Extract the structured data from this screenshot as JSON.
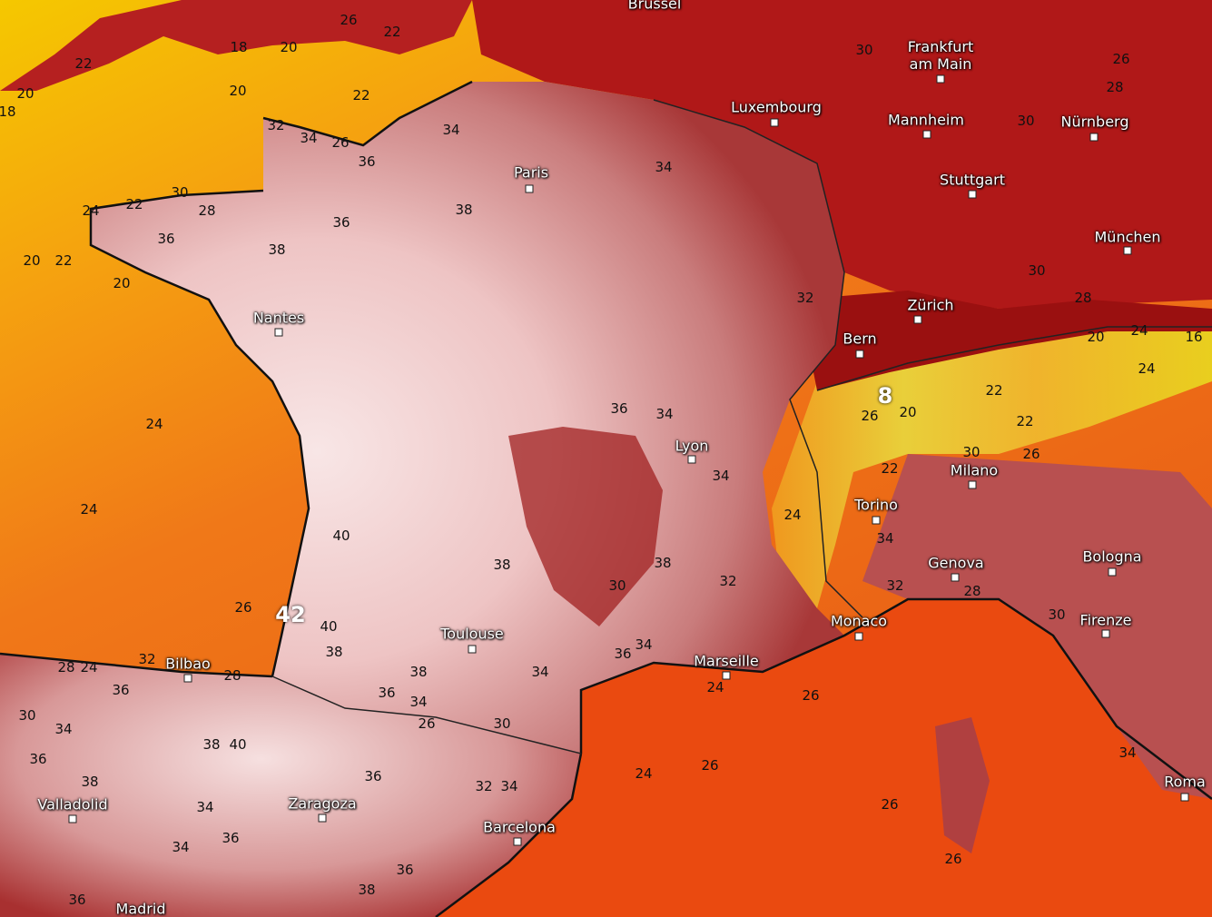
{
  "cities": [
    "Brussel",
    "Frankfurt am Main",
    "Luxembourg",
    "Mannheim",
    "Nürnberg",
    "Paris",
    "Stuttgart",
    "München",
    "Zürich",
    "Bern",
    "Nantes",
    "Lyon",
    "Milano",
    "Torino",
    "Genova",
    "Bologna",
    "Monaco",
    "Firenze",
    "Marseille",
    "Toulouse",
    "Bilbao",
    "Valladolid",
    "Zaragoza",
    "Barcelona",
    "Madrid",
    "Roma"
  ],
  "contour_labels": [
    20,
    18,
    22,
    18,
    20,
    22,
    26,
    20,
    22,
    32,
    34,
    26,
    36,
    30,
    22,
    28,
    24,
    36,
    38,
    36,
    20,
    22,
    20,
    38,
    34,
    34,
    24,
    24,
    40,
    38,
    26,
    40,
    38,
    38,
    36,
    34,
    34,
    36,
    34,
    36,
    34,
    34,
    38,
    30,
    32,
    24,
    26,
    20,
    22,
    30,
    26,
    34,
    32,
    28,
    30,
    24,
    20,
    24,
    22,
    22,
    28,
    26,
    28,
    30,
    30,
    30,
    32,
    30,
    34,
    36,
    38,
    34,
    36,
    34,
    36,
    38,
    36,
    36,
    38,
    40,
    24,
    26,
    26,
    26,
    34,
    24,
    26,
    26,
    30,
    32,
    34,
    28,
    36,
    24,
    28,
    32,
    16,
    8,
    42
  ]
}
